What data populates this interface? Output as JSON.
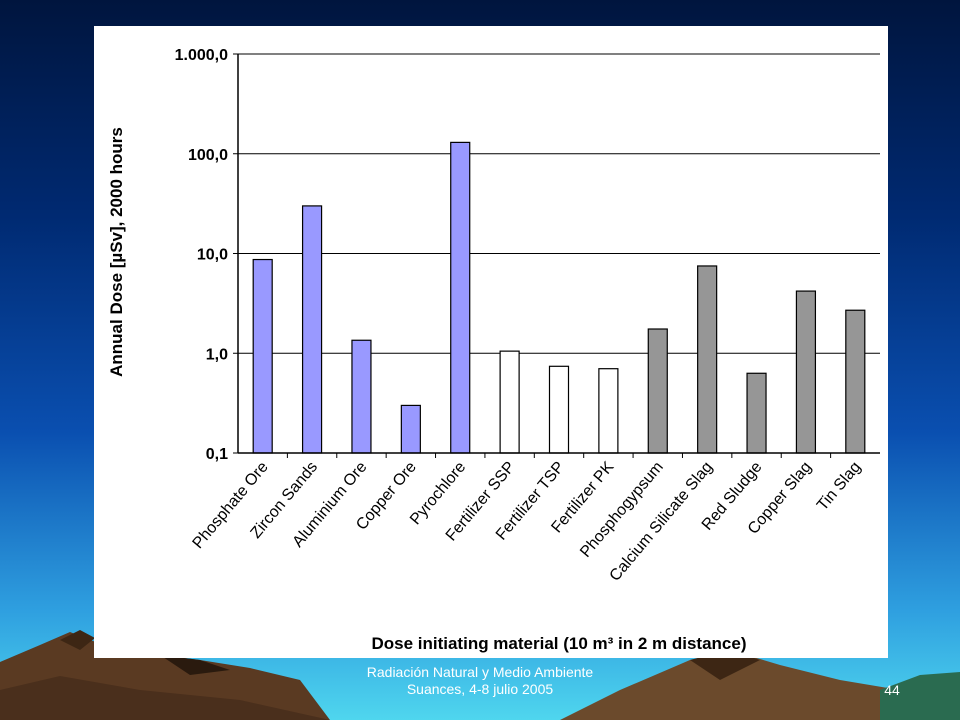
{
  "footer": {
    "line1": "Radiación Natural y Medio Ambiente",
    "line2": "Suances, 4-8 julio 2005",
    "page_number": "44"
  },
  "colors": {
    "natural": "#9999ff",
    "fertilizer": "#ffffff",
    "slag": "#969696"
  },
  "chart_data": {
    "type": "bar",
    "title": "",
    "ylabel": "Annual Dose [µSv], 2000 hours",
    "xlabel": "Dose initiating material (10 m³ in 2 m distance)",
    "yscale": "log",
    "ylim": [
      0.1,
      1000
    ],
    "yticks": [
      0.1,
      1,
      10,
      100,
      1000
    ],
    "ytick_labels": [
      "0,1",
      "1,0",
      "10,0",
      "100,0",
      "1.000,0"
    ],
    "grid": true,
    "categories": [
      "Phosphate Ore",
      "Zircon Sands",
      "Aluminium Ore",
      "Copper Ore",
      "Pyrochlore",
      "Fertilizer SSP",
      "Fertilizer TSP",
      "Fertilizer PK",
      "Phosphogypsum",
      "Calcium Silicate Slag",
      "Red Sludge",
      "Copper Slag",
      "Tin Slag"
    ],
    "values": [
      8.7,
      30,
      1.35,
      0.3,
      130,
      1.05,
      0.74,
      0.7,
      1.75,
      7.5,
      0.63,
      4.2,
      2.7
    ],
    "bar_colors": [
      "#9999ff",
      "#9999ff",
      "#9999ff",
      "#9999ff",
      "#9999ff",
      "#ffffff",
      "#ffffff",
      "#ffffff",
      "#969696",
      "#969696",
      "#969696",
      "#969696",
      "#969696"
    ]
  }
}
